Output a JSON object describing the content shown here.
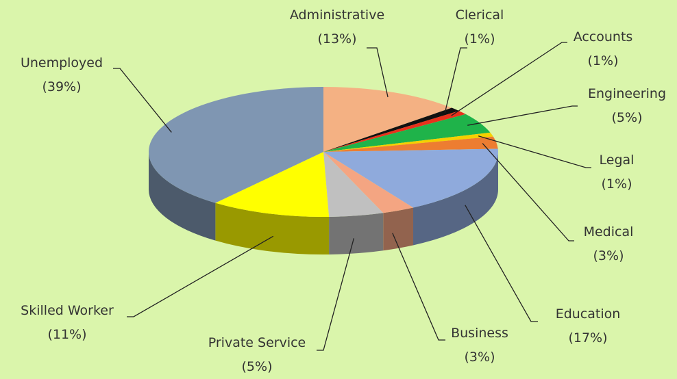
{
  "chart_data": {
    "type": "pie",
    "three_d": true,
    "categories": [
      "Administrative",
      "Clerical",
      "Accounts",
      "Engineering",
      "Legal",
      "Medical",
      "Education",
      "Business",
      "Private Service",
      "Skilled Worker",
      "Unemployed"
    ],
    "values": [
      13,
      1,
      1,
      5,
      1,
      3,
      17,
      3,
      5,
      11,
      39
    ],
    "value_labels": [
      "(13%)",
      "(1%)",
      "(1%)",
      "(5%)",
      "(1%)",
      "(3%)",
      "(17%)",
      "(3%)",
      "(5%)",
      "(11%)",
      "(39%)"
    ],
    "colors": [
      "#f4b183",
      "#111111",
      "#e8301c",
      "#1fb34a",
      "#f5d000",
      "#ed7d31",
      "#8faadc",
      "#f4a582",
      "#c0c0c0",
      "#ffff00",
      "#7f96b2"
    ]
  }
}
